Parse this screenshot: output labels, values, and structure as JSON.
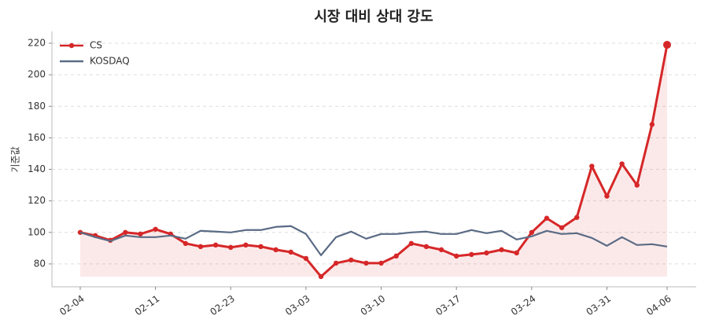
{
  "chart_data": {
    "type": "line",
    "title": "시장 대비 상대 강도",
    "y_label": "기준값",
    "categories": [
      "02-04",
      null,
      null,
      null,
      null,
      "02-11",
      null,
      null,
      null,
      null,
      "02-23",
      null,
      null,
      null,
      null,
      "03-03",
      null,
      null,
      null,
      null,
      "03-10",
      null,
      null,
      null,
      null,
      "03-17",
      null,
      null,
      null,
      null,
      "03-24",
      null,
      null,
      null,
      null,
      "03-31",
      null,
      null,
      null,
      "04-06"
    ],
    "series": [
      {
        "name": "CS",
        "color": "#d62728",
        "values": [
          100,
          98,
          95,
          100,
          99,
          102,
          99,
          93,
          91,
          92,
          90.5,
          92,
          91,
          89,
          87.5,
          83.5,
          72,
          80.5,
          82.5,
          80.5,
          80.5,
          85,
          93,
          91,
          89,
          85,
          86,
          87,
          89,
          87,
          100,
          109,
          103,
          109.5,
          142,
          123,
          143.5,
          130,
          168.5,
          219
        ]
      },
      {
        "name": "KOSDAQ",
        "color": "#5a6b85",
        "values": [
          100,
          97,
          94.5,
          98,
          97,
          97,
          98,
          96,
          101,
          100.5,
          100,
          101.5,
          101.5,
          103.5,
          104,
          99,
          85.5,
          97,
          100.5,
          96,
          99,
          99,
          100,
          100.5,
          99,
          99,
          101.5,
          99.5,
          101,
          95.5,
          97.5,
          101,
          99,
          99.5,
          96.5,
          91.5,
          97,
          92,
          92.5,
          91
        ]
      }
    ],
    "ylim": [
      65.5,
      227.5
    ],
    "yticks": [
      80,
      100,
      120,
      140,
      160,
      180,
      200,
      220
    ],
    "grid": true,
    "legend": "upper left"
  }
}
